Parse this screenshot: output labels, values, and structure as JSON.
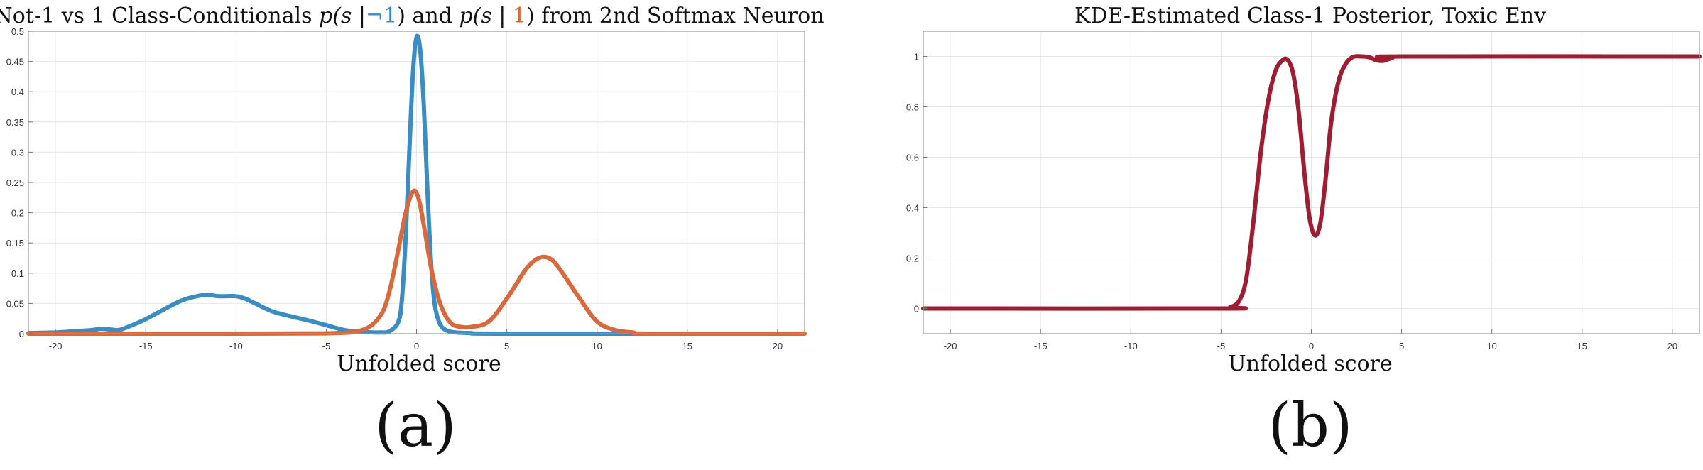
{
  "chart_data": [
    {
      "type": "line",
      "title": {
        "prefix": "Not-1 vs 1 Class-Conditionals ",
        "p1_open": "p(s |",
        "p1_cond": "¬1",
        "p1_close": ")",
        "middle": " and ",
        "p2_open": "p(s | ",
        "p2_cond": "1",
        "p2_close": ")",
        "suffix": " from 2nd Softmax Neuron"
      },
      "xlabel": "Unfolded score",
      "ylabel": "",
      "caption": "(a)",
      "xlim": [
        -21.5,
        21.5
      ],
      "ylim": [
        0,
        0.5
      ],
      "xticks": [
        -20,
        -15,
        -10,
        -5,
        0,
        5,
        10,
        15,
        20
      ],
      "xtick_labels": [
        "-20",
        "-15",
        "-10",
        "-5",
        "0",
        "5",
        "10",
        "15",
        "20"
      ],
      "yticks": [
        0,
        0.05,
        0.1,
        0.15,
        0.2,
        0.25,
        0.3,
        0.35,
        0.4,
        0.45,
        0.5
      ],
      "ytick_labels": [
        "0",
        "0.05",
        "0.1",
        "0.15",
        "0.2",
        "0.25",
        "0.3",
        "0.35",
        "0.4",
        "0.45",
        "0.5"
      ],
      "grid": true,
      "legend": "none",
      "series": [
        {
          "color": "#3a8dc4",
          "x": [
            -21.5,
            -20,
            -19,
            -18,
            -17.5,
            -17,
            -16.5,
            -16,
            -15,
            -14,
            -13,
            -12,
            -11.5,
            -11,
            -10.5,
            -10,
            -9.5,
            -9,
            -8,
            -7,
            -6,
            -5,
            -4,
            -3,
            -2,
            -1.5,
            -1,
            -0.8,
            -0.6,
            -0.4,
            -0.2,
            0,
            0.2,
            0.4,
            0.6,
            0.8,
            1,
            1.3,
            1.7,
            2.2,
            3,
            5,
            21.5
          ],
          "y": [
            0.001,
            0.002,
            0.004,
            0.006,
            0.008,
            0.007,
            0.006,
            0.011,
            0.024,
            0.04,
            0.055,
            0.063,
            0.064,
            0.062,
            0.062,
            0.062,
            0.058,
            0.051,
            0.037,
            0.029,
            0.022,
            0.014,
            0.006,
            0.003,
            0.002,
            0.004,
            0.02,
            0.06,
            0.16,
            0.3,
            0.43,
            0.49,
            0.47,
            0.38,
            0.24,
            0.12,
            0.05,
            0.016,
            0.005,
            0.002,
            0.001,
            0.0,
            0.0
          ]
        },
        {
          "color": "#d9693c",
          "x": [
            -21.5,
            -10,
            -5,
            -3,
            -2,
            -1.5,
            -1,
            -0.6,
            -0.2,
            0.1,
            0.4,
            0.8,
            1.2,
            1.6,
            2,
            2.5,
            3,
            4,
            5,
            6,
            6.5,
            7,
            7.5,
            8,
            9,
            10,
            11,
            12,
            13,
            21.5
          ],
          "y": [
            0.0,
            0.0,
            0.0005,
            0.006,
            0.03,
            0.07,
            0.14,
            0.2,
            0.235,
            0.225,
            0.18,
            0.11,
            0.06,
            0.03,
            0.015,
            0.011,
            0.011,
            0.02,
            0.058,
            0.104,
            0.12,
            0.127,
            0.122,
            0.104,
            0.06,
            0.02,
            0.006,
            0.002,
            0.0,
            0.0
          ]
        }
      ]
    },
    {
      "type": "line",
      "title": "KDE-Estimated Class-1 Posterior, Toxic Env",
      "xlabel": "Unfolded score",
      "ylabel": "",
      "caption": "(b)",
      "xlim": [
        -21.5,
        21.5
      ],
      "ylim": [
        -0.1,
        1.1
      ],
      "xticks": [
        -20,
        -15,
        -10,
        -5,
        0,
        5,
        10,
        15,
        20
      ],
      "xtick_labels": [
        "-20",
        "-15",
        "-10",
        "-5",
        "0",
        "5",
        "10",
        "15",
        "20"
      ],
      "yticks": [
        0,
        0.2,
        0.4,
        0.6,
        0.8,
        1
      ],
      "ytick_labels": [
        "0",
        "0.2",
        "0.4",
        "0.6",
        "0.8",
        "1"
      ],
      "grid": true,
      "legend": "none",
      "series": [
        {
          "color": "#a01c30",
          "x": [
            -21.5,
            -5,
            -4.5,
            -4,
            -3.6,
            -3.2,
            -2.8,
            -2.4,
            -2,
            -1.6,
            -1.3,
            -1,
            -0.7,
            -0.4,
            -0.1,
            0.2,
            0.5,
            0.8,
            1.1,
            1.5,
            1.9,
            2.3,
            2.8,
            3.2,
            3.6,
            4,
            4.5,
            5,
            21.5
          ],
          "y": [
            0.0,
            0.0,
            0.005,
            0.03,
            0.12,
            0.35,
            0.62,
            0.82,
            0.94,
            0.985,
            0.985,
            0.93,
            0.78,
            0.55,
            0.36,
            0.29,
            0.34,
            0.52,
            0.74,
            0.9,
            0.97,
            0.998,
            1.0,
            0.997,
            0.985,
            0.983,
            0.995,
            1.0,
            1.0
          ]
        }
      ]
    }
  ]
}
